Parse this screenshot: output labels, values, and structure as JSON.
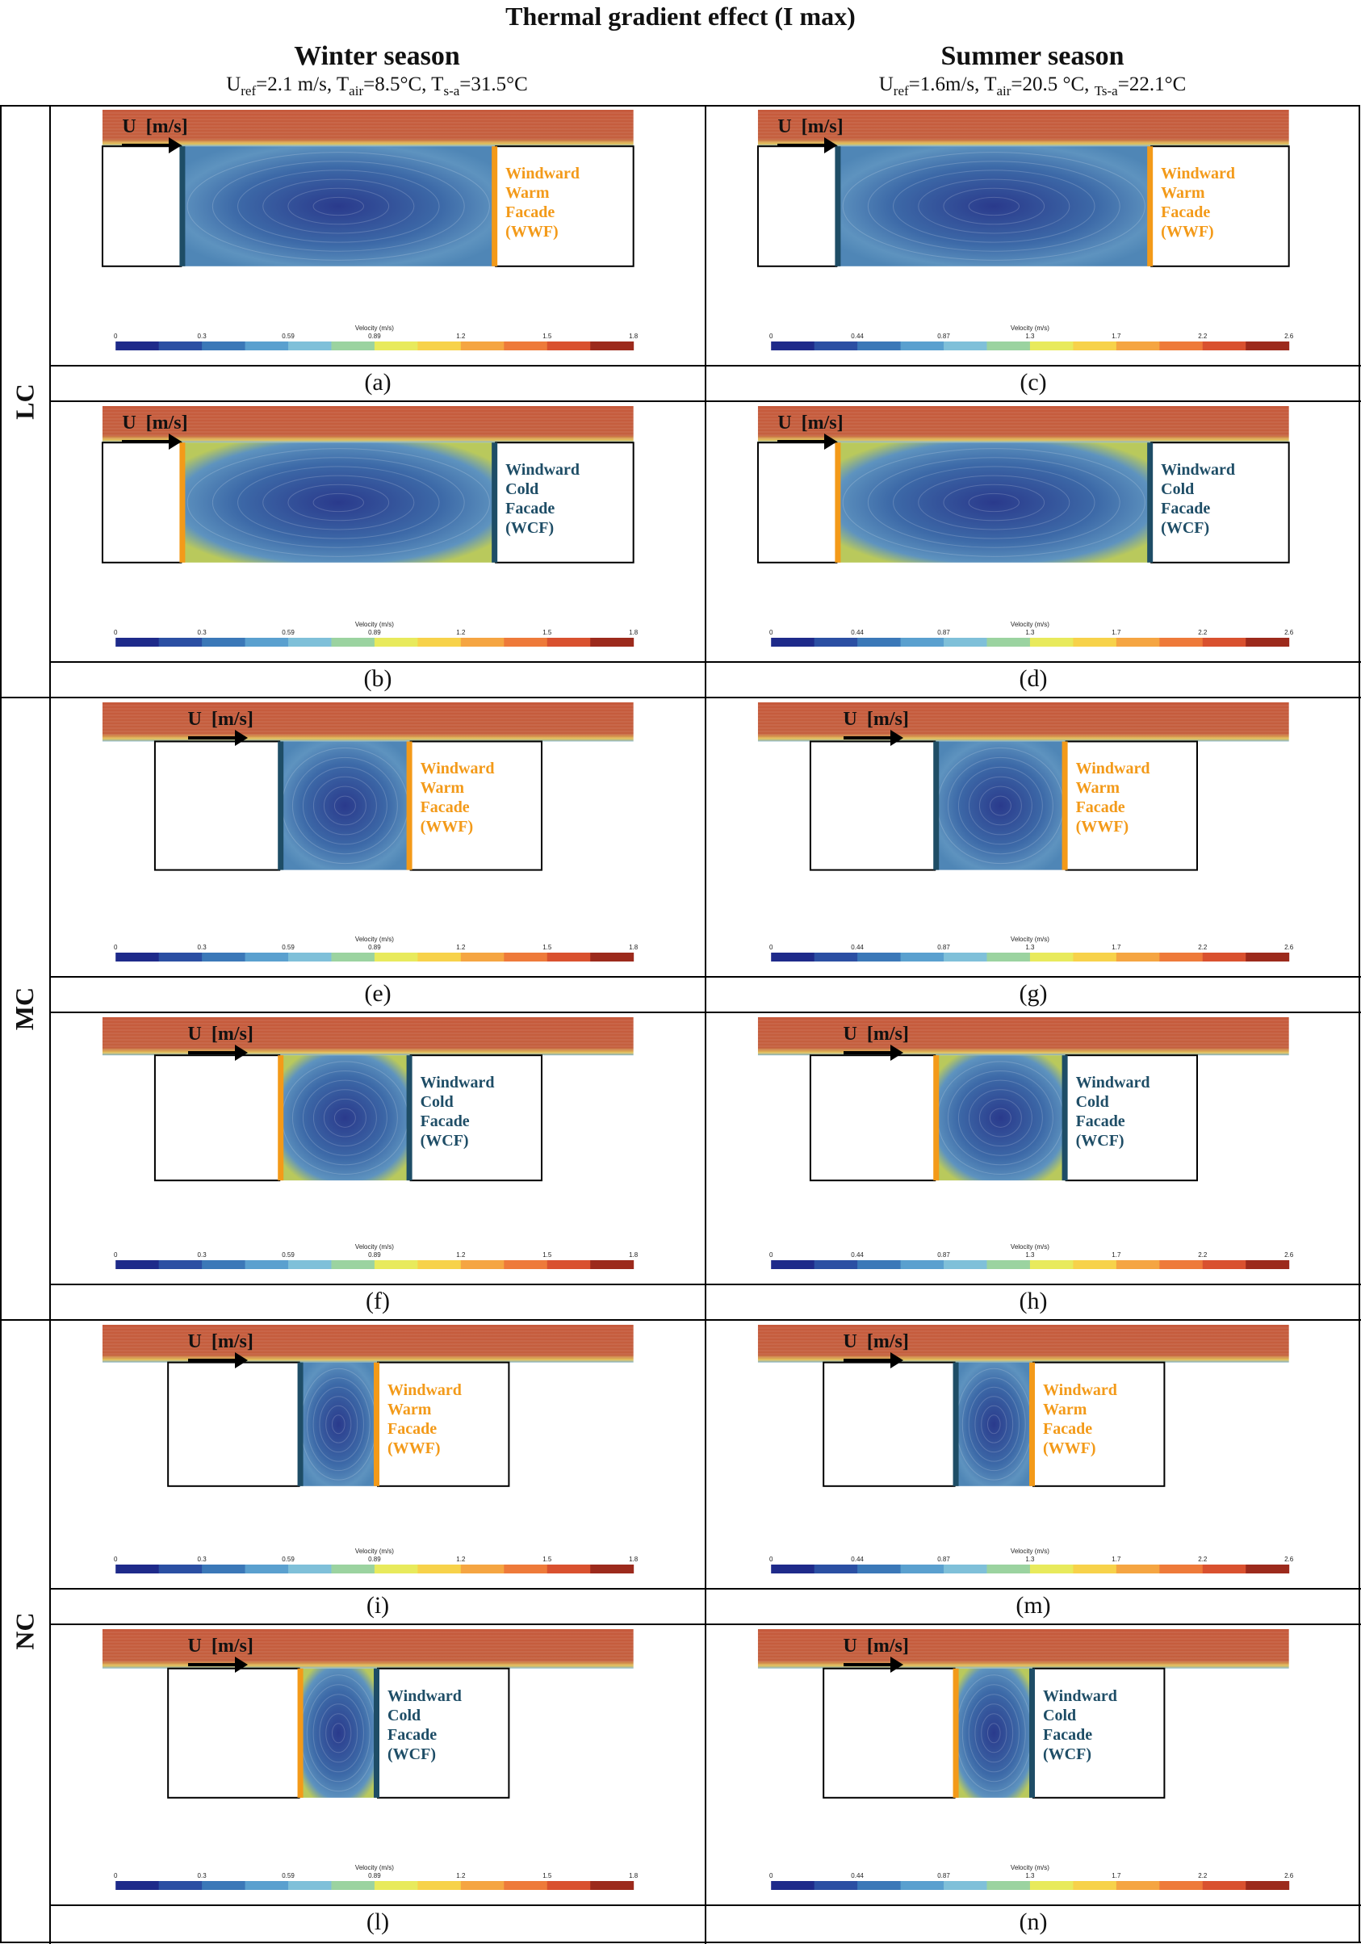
{
  "title": "Thermal gradient effect (I max)",
  "seasons": [
    {
      "name": "Winter season",
      "params_html": "U<sub>ref</sub>=2.1 m/s, T<sub>air</sub>=8.5°C, T<sub>s-a</sub>=31.5°C"
    },
    {
      "name": "Summer season",
      "params_html": "U<sub>ref</sub>=1.6m/s, T<sub>air</sub>=20.5 °C, <sub>Ts-a</sub>=22.1°C"
    }
  ],
  "row_labels": [
    "LC",
    "MC",
    "NC"
  ],
  "u_label": "U  [m/s]",
  "colorbar_title": "Velocity (m/s)",
  "colorbars": {
    "winter": [
      "0",
      "0.3",
      "0.59",
      "0.89",
      "1.2",
      "1.5",
      "1.8"
    ],
    "summer": [
      "0",
      "0.44",
      "0.87",
      "1.3",
      "1.7",
      "2.2",
      "2.6"
    ]
  },
  "colors": {
    "warm": "#f39a19",
    "cold": "#1e4d66",
    "jet_dark": "#2a3a8c",
    "jet_hot": "#c4553a"
  },
  "facade_labels": {
    "wwf": [
      "Windward",
      "Warm",
      "Facade",
      "(WWF)"
    ],
    "wcf": [
      "Windward",
      "Cold",
      "Facade",
      "(WCF)"
    ]
  },
  "panels": [
    {
      "caption": "(a)",
      "season": "winter",
      "canyon": "LC",
      "facade": "wwf"
    },
    {
      "caption": "(c)",
      "season": "summer",
      "canyon": "LC",
      "facade": "wwf"
    },
    {
      "caption": "(b)",
      "season": "winter",
      "canyon": "LC",
      "facade": "wcf"
    },
    {
      "caption": "(d)",
      "season": "summer",
      "canyon": "LC",
      "facade": "wcf"
    },
    {
      "caption": "(e)",
      "season": "winter",
      "canyon": "MC",
      "facade": "wwf"
    },
    {
      "caption": "(g)",
      "season": "summer",
      "canyon": "MC",
      "facade": "wwf"
    },
    {
      "caption": "(f)",
      "season": "winter",
      "canyon": "MC",
      "facade": "wcf"
    },
    {
      "caption": "(h)",
      "season": "summer",
      "canyon": "MC",
      "facade": "wcf"
    },
    {
      "caption": "(i)",
      "season": "winter",
      "canyon": "NC",
      "facade": "wwf"
    },
    {
      "caption": "(m)",
      "season": "summer",
      "canyon": "NC",
      "facade": "wwf"
    },
    {
      "caption": "(l)",
      "season": "winter",
      "canyon": "NC",
      "facade": "wcf"
    },
    {
      "caption": "(n)",
      "season": "summer",
      "canyon": "NC",
      "facade": "wcf"
    }
  ]
}
